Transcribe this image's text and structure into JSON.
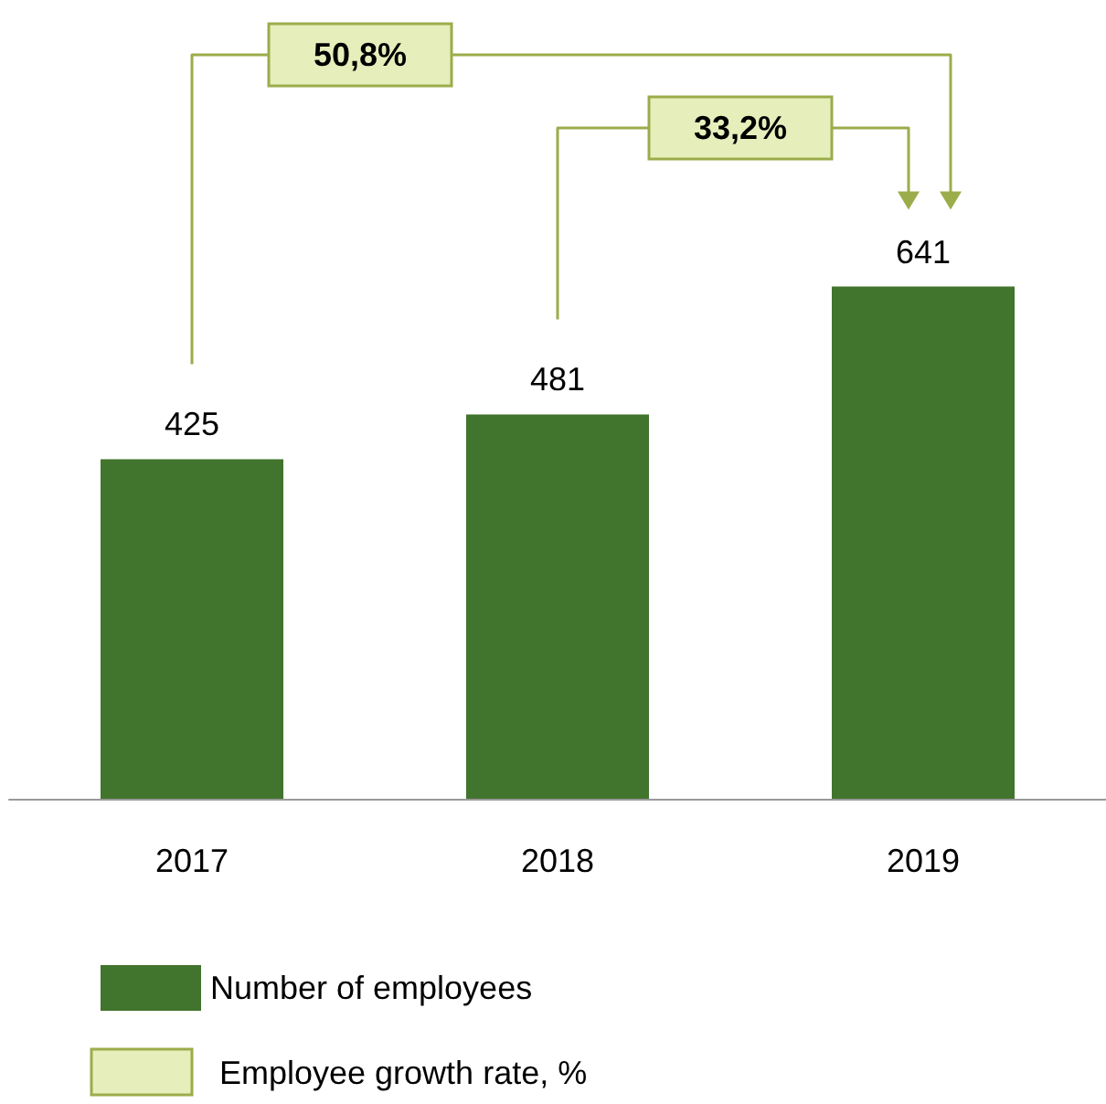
{
  "chart_data": {
    "type": "bar",
    "categories": [
      "2017",
      "2018",
      "2019"
    ],
    "series": [
      {
        "name": "Number of employees",
        "color": "#41742d",
        "values": [
          425,
          481,
          641
        ]
      }
    ],
    "data_labels": true,
    "legend": "bottom",
    "annotations": [
      {
        "text": "50,8%"
      },
      {
        "text": "33,2%"
      },
      "Employee growth rate, %"
    ]
  }
}
